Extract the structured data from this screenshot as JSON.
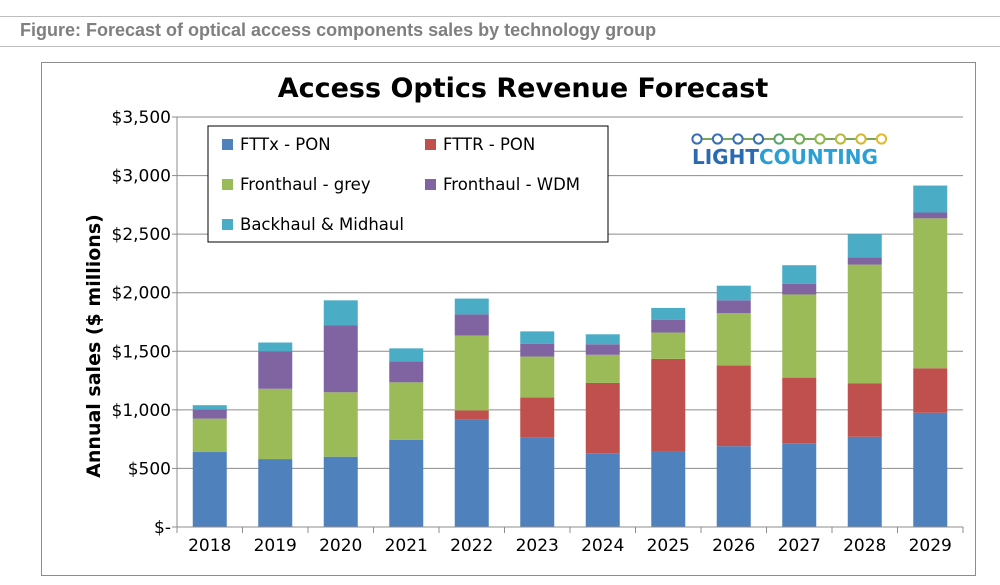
{
  "caption": "Figure: Forecast of optical access components sales by technology group",
  "logo": {
    "light": "LIGHT",
    "counting": "COUNTING"
  },
  "chart_data": {
    "type": "bar",
    "stacked": true,
    "title": "Access Optics Revenue Forecast",
    "xlabel": "",
    "ylabel": "Annual sales ($ millions)",
    "ylim": [
      0,
      3500
    ],
    "yticks": [
      0,
      500,
      1000,
      1500,
      2000,
      2500,
      3000,
      3500
    ],
    "ytick_labels": [
      "$-",
      "$500",
      "$1,000",
      "$1,500",
      "$2,000",
      "$2,500",
      "$3,000",
      "$3,500"
    ],
    "grid": true,
    "legend_position": "top-left",
    "categories": [
      "2018",
      "2019",
      "2020",
      "2021",
      "2022",
      "2023",
      "2024",
      "2025",
      "2026",
      "2027",
      "2028",
      "2029"
    ],
    "series": [
      {
        "name": "FTTx - PON",
        "color": "#4f81bd",
        "values": [
          640,
          580,
          600,
          745,
          915,
          765,
          630,
          645,
          690,
          715,
          770,
          975
        ]
      },
      {
        "name": "FTTR - PON",
        "color": "#c0504d",
        "values": [
          0,
          0,
          0,
          0,
          80,
          340,
          600,
          790,
          690,
          560,
          455,
          380
        ]
      },
      {
        "name": "Fronthaul - grey",
        "color": "#9bbb59",
        "values": [
          285,
          600,
          550,
          490,
          640,
          350,
          240,
          225,
          445,
          710,
          1015,
          1280
        ]
      },
      {
        "name": "Fronthaul - WDM",
        "color": "#8064a2",
        "values": [
          80,
          320,
          570,
          180,
          180,
          110,
          90,
          110,
          110,
          90,
          60,
          50
        ]
      },
      {
        "name": "Backhaul & Midhaul",
        "color": "#4bacc6",
        "values": [
          35,
          75,
          215,
          110,
          135,
          105,
          85,
          100,
          125,
          160,
          200,
          230
        ]
      }
    ]
  }
}
